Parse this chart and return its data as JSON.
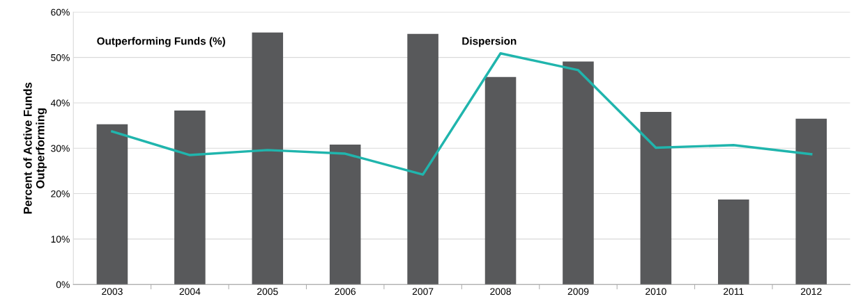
{
  "chart_data": {
    "type": "bar",
    "ylabel": "Percent of Active Funds\nOutperforming",
    "categories": [
      "2003",
      "2004",
      "2005",
      "2006",
      "2007",
      "2008",
      "2009",
      "2010",
      "2011",
      "2012"
    ],
    "series": [
      {
        "name": "Outperforming Funds (%)",
        "color": "#58595b",
        "values": [
          35.3,
          38.3,
          55.5,
          30.8,
          55.2,
          45.7,
          49.1,
          38.0,
          18.7,
          36.5
        ]
      },
      {
        "name": "Dispersion",
        "type": "line",
        "color": "#20b5ad",
        "values": [
          33.7,
          28.5,
          29.6,
          28.8,
          24.2,
          50.9,
          47.2,
          30.1,
          30.7,
          28.7
        ]
      }
    ],
    "ylim": [
      0,
      60
    ],
    "yticks": [
      {
        "value": 0,
        "label": "0%"
      },
      {
        "value": 10,
        "label": "10%"
      },
      {
        "value": 20,
        "label": "20%"
      },
      {
        "value": 30,
        "label": "30%"
      },
      {
        "value": 40,
        "label": "40%"
      },
      {
        "value": 50,
        "label": "50%"
      },
      {
        "value": 60,
        "label": "60%"
      }
    ],
    "grid": "y",
    "legend": false
  }
}
